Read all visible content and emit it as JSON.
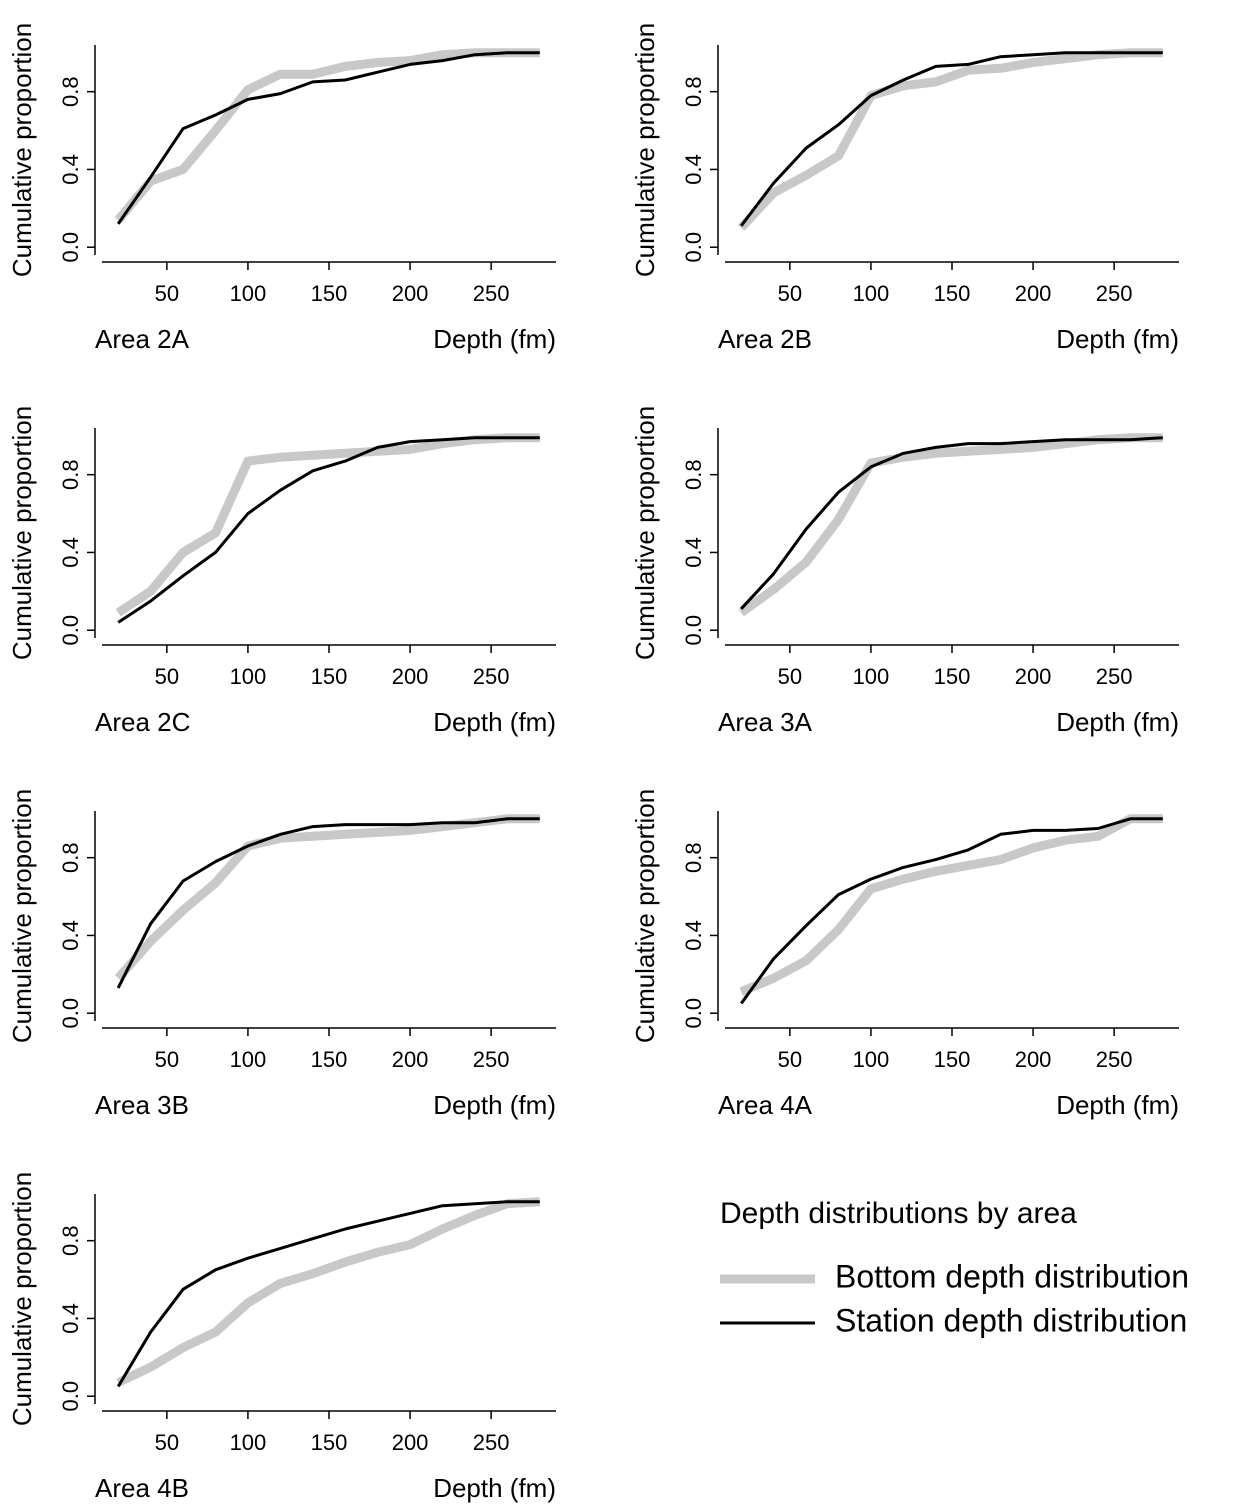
{
  "chart_data": [
    {
      "type": "line",
      "title": "Area 2A",
      "xlabel": "Depth (fm)",
      "ylabel": "Cumulative proportion",
      "x": [
        20,
        40,
        60,
        80,
        100,
        120,
        140,
        160,
        180,
        200,
        220,
        240,
        260,
        280
      ],
      "series": [
        {
          "color": "#c8c8c8",
          "values": [
            0.14,
            0.34,
            0.4,
            0.6,
            0.81,
            0.89,
            0.89,
            0.93,
            0.95,
            0.96,
            0.99,
            1.0,
            1.0,
            1.0
          ]
        },
        {
          "color": "#000000",
          "values": [
            0.12,
            0.36,
            0.61,
            0.68,
            0.76,
            0.79,
            0.85,
            0.86,
            0.9,
            0.94,
            0.96,
            0.99,
            1.0,
            1.0
          ]
        }
      ],
      "xlim": [
        10,
        290
      ],
      "xticks": [
        50,
        100,
        150,
        200,
        250
      ],
      "ylim": [
        -0.04,
        1.04
      ],
      "yticks": [
        {
          "value": 0,
          "label": "0.0"
        },
        0.4,
        0.8
      ]
    },
    {
      "type": "line",
      "title": "Area 2B",
      "xlabel": "Depth (fm)",
      "ylabel": "Cumulative proportion",
      "x": [
        20,
        40,
        60,
        80,
        100,
        120,
        140,
        160,
        180,
        200,
        220,
        240,
        260,
        280
      ],
      "series": [
        {
          "color": "#c8c8c8",
          "values": [
            0.1,
            0.28,
            0.37,
            0.47,
            0.78,
            0.83,
            0.85,
            0.91,
            0.92,
            0.95,
            0.97,
            0.99,
            1.0,
            1.0
          ]
        },
        {
          "color": "#000000",
          "values": [
            0.11,
            0.33,
            0.51,
            0.63,
            0.78,
            0.86,
            0.93,
            0.94,
            0.98,
            0.99,
            1.0,
            1.0,
            1.0,
            1.0
          ]
        }
      ],
      "xlim": [
        10,
        290
      ],
      "xticks": [
        50,
        100,
        150,
        200,
        250
      ],
      "ylim": [
        -0.04,
        1.04
      ],
      "yticks": [
        {
          "value": 0,
          "label": "0.0"
        },
        0.4,
        0.8
      ]
    },
    {
      "type": "line",
      "title": "Area 2C",
      "xlabel": "Depth (fm)",
      "ylabel": "Cumulative proportion",
      "x": [
        20,
        40,
        60,
        80,
        100,
        120,
        140,
        160,
        180,
        200,
        220,
        240,
        260,
        280
      ],
      "series": [
        {
          "color": "#c8c8c8",
          "values": [
            0.09,
            0.2,
            0.4,
            0.5,
            0.87,
            0.89,
            0.9,
            0.91,
            0.92,
            0.93,
            0.96,
            0.98,
            0.99,
            0.99
          ]
        },
        {
          "color": "#000000",
          "values": [
            0.04,
            0.15,
            0.28,
            0.4,
            0.6,
            0.72,
            0.82,
            0.87,
            0.94,
            0.97,
            0.98,
            0.99,
            0.99,
            0.99
          ]
        }
      ],
      "xlim": [
        10,
        290
      ],
      "xticks": [
        50,
        100,
        150,
        200,
        250
      ],
      "ylim": [
        -0.04,
        1.04
      ],
      "yticks": [
        {
          "value": 0,
          "label": "0.0"
        },
        0.4,
        0.8
      ]
    },
    {
      "type": "line",
      "title": "Area 3A",
      "xlabel": "Depth (fm)",
      "ylabel": "Cumulative proportion",
      "x": [
        20,
        40,
        60,
        80,
        100,
        120,
        140,
        160,
        180,
        200,
        220,
        240,
        260,
        280
      ],
      "series": [
        {
          "color": "#c8c8c8",
          "values": [
            0.09,
            0.21,
            0.35,
            0.57,
            0.86,
            0.89,
            0.91,
            0.92,
            0.93,
            0.94,
            0.96,
            0.98,
            0.99,
            0.99
          ]
        },
        {
          "color": "#000000",
          "values": [
            0.11,
            0.29,
            0.52,
            0.71,
            0.84,
            0.91,
            0.94,
            0.96,
            0.96,
            0.97,
            0.98,
            0.98,
            0.98,
            0.99
          ]
        }
      ],
      "xlim": [
        10,
        290
      ],
      "xticks": [
        50,
        100,
        150,
        200,
        250
      ],
      "ylim": [
        -0.04,
        1.04
      ],
      "yticks": [
        {
          "value": 0,
          "label": "0.0"
        },
        0.4,
        0.8
      ]
    },
    {
      "type": "line",
      "title": "Area 3B",
      "xlabel": "Depth (fm)",
      "ylabel": "Cumulative proportion",
      "x": [
        20,
        40,
        60,
        80,
        100,
        120,
        140,
        160,
        180,
        200,
        220,
        240,
        260,
        280
      ],
      "series": [
        {
          "color": "#c8c8c8",
          "values": [
            0.18,
            0.37,
            0.53,
            0.67,
            0.86,
            0.9,
            0.91,
            0.92,
            0.93,
            0.94,
            0.96,
            0.98,
            1.0,
            1.0
          ]
        },
        {
          "color": "#000000",
          "values": [
            0.13,
            0.46,
            0.68,
            0.78,
            0.86,
            0.92,
            0.96,
            0.97,
            0.97,
            0.97,
            0.98,
            0.98,
            1.0,
            1.0
          ]
        }
      ],
      "xlim": [
        10,
        290
      ],
      "xticks": [
        50,
        100,
        150,
        200,
        250
      ],
      "ylim": [
        -0.04,
        1.04
      ],
      "yticks": [
        {
          "value": 0,
          "label": "0.0"
        },
        0.4,
        0.8
      ]
    },
    {
      "type": "line",
      "title": "Area 4A",
      "xlabel": "Depth (fm)",
      "ylabel": "Cumulative proportion",
      "x": [
        20,
        40,
        60,
        80,
        100,
        120,
        140,
        160,
        180,
        200,
        220,
        240,
        260,
        280
      ],
      "series": [
        {
          "color": "#c8c8c8",
          "values": [
            0.11,
            0.18,
            0.27,
            0.43,
            0.64,
            0.69,
            0.73,
            0.76,
            0.79,
            0.85,
            0.89,
            0.91,
            1.0,
            1.0
          ]
        },
        {
          "color": "#000000",
          "values": [
            0.05,
            0.28,
            0.45,
            0.61,
            0.69,
            0.75,
            0.79,
            0.84,
            0.92,
            0.94,
            0.94,
            0.95,
            1.0,
            1.0
          ]
        }
      ],
      "xlim": [
        10,
        290
      ],
      "xticks": [
        50,
        100,
        150,
        200,
        250
      ],
      "ylim": [
        -0.04,
        1.04
      ],
      "yticks": [
        {
          "value": 0,
          "label": "0.0"
        },
        0.4,
        0.8
      ]
    },
    {
      "type": "line",
      "title": "Area 4B",
      "xlabel": "Depth (fm)",
      "ylabel": "Cumulative proportion",
      "x": [
        20,
        40,
        60,
        80,
        100,
        120,
        140,
        160,
        180,
        200,
        220,
        240,
        260,
        280
      ],
      "series": [
        {
          "color": "#c8c8c8",
          "values": [
            0.07,
            0.15,
            0.25,
            0.33,
            0.48,
            0.58,
            0.63,
            0.69,
            0.74,
            0.78,
            0.86,
            0.93,
            0.99,
            1.0
          ]
        },
        {
          "color": "#000000",
          "values": [
            0.05,
            0.33,
            0.55,
            0.65,
            0.71,
            0.76,
            0.81,
            0.86,
            0.9,
            0.94,
            0.98,
            0.99,
            1.0,
            1.0
          ]
        }
      ],
      "xlim": [
        10,
        290
      ],
      "xticks": [
        50,
        100,
        150,
        200,
        250
      ],
      "ylim": [
        -0.04,
        1.04
      ],
      "yticks": [
        {
          "value": 0,
          "label": "0.0"
        },
        0.4,
        0.8
      ]
    }
  ],
  "legend": {
    "title": "Depth distributions by area",
    "entries": [
      {
        "name": "Bottom depth distribution",
        "color": "#c8c8c8"
      },
      {
        "name": "Station depth distribution",
        "color": "#000000"
      }
    ]
  }
}
